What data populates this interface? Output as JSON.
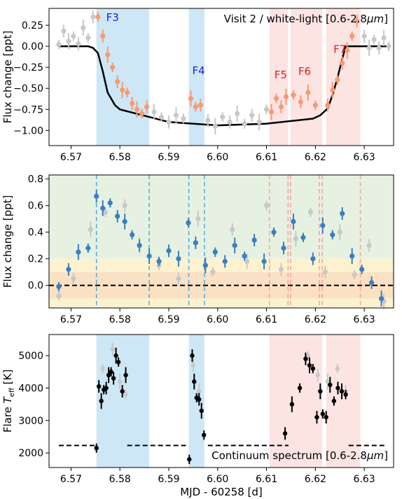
{
  "chart_data": [
    {
      "type": "scatter",
      "panel": "top",
      "annotation": "Visit 2 / white-light [0.6-2.8μm]",
      "annotation_parts": [
        "Visit 2 / white-light [0.6-2.8",
        "μm",
        "]"
      ],
      "xlabel": "",
      "ylabel": "Flux change [ppt]",
      "xlim": [
        6.5655,
        6.636
      ],
      "ylim": [
        -1.18,
        0.45
      ],
      "xticks": [
        "6.57",
        "6.58",
        "6.59",
        "6.60",
        "6.61",
        "6.62",
        "6.63"
      ],
      "yticks": [
        "0.25",
        "0.00",
        "−0.25",
        "−0.50",
        "−0.75",
        "−1.00"
      ],
      "ytick_values": [
        0.25,
        0.0,
        -0.25,
        -0.5,
        -0.75,
        -1.0
      ],
      "flare_regions": [
        {
          "name": "F3",
          "x0": 6.5752,
          "x1": 6.586,
          "color": "#5aafe0"
        },
        {
          "name": "F4",
          "x0": 6.5941,
          "x1": 6.5973,
          "color": "#5aafe0"
        },
        {
          "name": "F5",
          "x0": 6.6106,
          "x1": 6.6144,
          "color": "#f4a7a0"
        },
        {
          "name": "F6",
          "x0": 6.6149,
          "x1": 6.6214,
          "color": "#f4a7a0"
        },
        {
          "name": "F7",
          "x0": 6.6222,
          "x1": 6.6292,
          "color": "#f4a7a0"
        }
      ],
      "flare_labels": [
        {
          "text": "F3",
          "x": 6.5772,
          "y": 0.3,
          "color": "#1c1cd6"
        },
        {
          "text": "F4",
          "x": 6.5948,
          "y": -0.33,
          "color": "#1c1cd6"
        },
        {
          "text": "F5",
          "x": 6.6116,
          "y": -0.38,
          "color": "#e02020"
        },
        {
          "text": "F6",
          "x": 6.6165,
          "y": -0.34,
          "color": "#e02020"
        },
        {
          "text": "F7",
          "x": 6.6237,
          "y": -0.08,
          "color": "#e02020"
        }
      ],
      "model_transit": {
        "x": [
          6.5675,
          6.5735,
          6.5745,
          6.5755,
          6.5765,
          6.5775,
          6.579,
          6.58,
          6.59,
          6.6,
          6.61,
          6.6195,
          6.621,
          6.6225,
          6.6235,
          6.6245,
          6.6255,
          6.6262,
          6.635
        ],
        "y": [
          0,
          0,
          -0.02,
          -0.08,
          -0.3,
          -0.55,
          -0.7,
          -0.75,
          -0.9,
          -0.94,
          -0.92,
          -0.86,
          -0.82,
          -0.74,
          -0.58,
          -0.38,
          -0.15,
          0,
          0
        ]
      },
      "series": [
        {
          "name": "",
          "color": "#c8c8c8",
          "x": [
            6.5675,
            6.5685,
            6.5695,
            6.5705,
            6.5715,
            6.5725,
            6.5735,
            6.5745,
            6.587,
            6.5885,
            6.59,
            6.5915,
            6.593,
            6.598,
            6.5995,
            6.601,
            6.6025,
            6.604,
            6.6055,
            6.607,
            6.6085,
            6.61,
            6.63,
            6.631,
            6.632,
            6.633,
            6.634,
            6.635
          ],
          "y": [
            0.02,
            0.18,
            0.06,
            0.12,
            0.03,
            0.22,
            0.1,
            0.35,
            -0.78,
            -0.84,
            -0.9,
            -0.82,
            -0.86,
            -0.88,
            -0.95,
            -0.84,
            -0.9,
            -0.8,
            -0.92,
            -0.82,
            -0.9,
            -0.75,
            0.12,
            -0.02,
            0.08,
            -0.02,
            0.1,
            0.0
          ]
        },
        {
          "name": "",
          "color": "#f79a74",
          "x": [
            6.5755,
            6.5765,
            6.5775,
            6.5785,
            6.5795,
            6.5805,
            6.5815,
            6.5825,
            6.5835,
            6.5845,
            6.5855,
            6.5945,
            6.5955,
            6.5965,
            6.611,
            6.612,
            6.613,
            6.614,
            6.6155,
            6.617,
            6.6185,
            6.62,
            6.6225,
            6.6235,
            6.6245,
            6.6255,
            6.6265,
            6.6275,
            6.6285
          ],
          "y": [
            0.35,
            0.12,
            -0.1,
            -0.25,
            -0.42,
            -0.52,
            -0.55,
            -0.68,
            -0.75,
            -0.8,
            -0.72,
            -0.62,
            -0.72,
            -0.7,
            -0.78,
            -0.62,
            -0.72,
            -0.6,
            -0.58,
            -0.66,
            -0.55,
            -0.7,
            -0.7,
            -0.52,
            -0.4,
            -0.2,
            -0.05,
            0.12,
            0.3
          ]
        }
      ]
    },
    {
      "type": "scatter",
      "panel": "middle",
      "xlabel": "",
      "ylabel": "Flux change [ppt]",
      "xlim": [
        6.5655,
        6.636
      ],
      "ylim": [
        -0.17,
        0.83
      ],
      "xticks": [
        "6.57",
        "6.58",
        "6.59",
        "6.60",
        "6.61",
        "6.62",
        "6.63"
      ],
      "yticks": [
        "0.0",
        "0.2",
        "0.4",
        "0.6",
        "0.8"
      ],
      "ytick_values": [
        0.0,
        0.2,
        0.4,
        0.6,
        0.8
      ],
      "background_bands": [
        {
          "y0": 0.2,
          "y1": 0.83,
          "color": "#e6f1e2"
        },
        {
          "y0": 0.1,
          "y1": 0.2,
          "color": "#fdf2cf"
        },
        {
          "y0": -0.1,
          "y1": 0.1,
          "color": "#fbe1c3"
        },
        {
          "y0": -0.17,
          "y1": -0.1,
          "color": "#fdf2cf"
        }
      ],
      "flare_lines": [
        {
          "x": 6.5752,
          "color": "#5aafe0"
        },
        {
          "x": 6.586,
          "color": "#5aafe0"
        },
        {
          "x": 6.5941,
          "color": "#5aafe0"
        },
        {
          "x": 6.5973,
          "color": "#5aafe0"
        },
        {
          "x": 6.6106,
          "color": "#f4a7a0"
        },
        {
          "x": 6.6144,
          "color": "#f4a7a0"
        },
        {
          "x": 6.6149,
          "color": "#f4a7a0"
        },
        {
          "x": 6.6208,
          "color": "#f4a7a0"
        },
        {
          "x": 6.6214,
          "color": "#f4a7a0"
        },
        {
          "x": 6.6292,
          "color": "#f4a7a0"
        }
      ],
      "zero_line": 0.0,
      "series": [
        {
          "name": "",
          "color": "#c8c8c8",
          "x": [
            6.5675,
            6.5705,
            6.574,
            6.577,
            6.581,
            6.584,
            6.588,
            6.592,
            6.596,
            6.599,
            6.603,
            6.606,
            6.61,
            6.613,
            6.616,
            6.619,
            6.622,
            6.625,
            6.628,
            6.631,
            6.634
          ],
          "y": [
            -0.08,
            0.05,
            0.42,
            0.55,
            0.6,
            0.3,
            0.15,
            0.05,
            0.5,
            0.1,
            0.42,
            0.18,
            0.6,
            0.12,
            0.35,
            0.55,
            0.1,
            0.4,
            0.08,
            0.3,
            -0.12
          ]
        },
        {
          "name": "",
          "color": "#3a7fbe",
          "x": [
            6.5675,
            6.5695,
            6.5715,
            6.5735,
            6.5752,
            6.5765,
            6.578,
            6.5795,
            6.581,
            6.5825,
            6.584,
            6.586,
            6.588,
            6.59,
            6.592,
            6.594,
            6.5955,
            6.5975,
            6.5995,
            6.6015,
            6.6035,
            6.6055,
            6.6075,
            6.6095,
            6.6115,
            6.6135,
            6.6155,
            6.6175,
            6.6195,
            6.6215,
            6.6235,
            6.6255,
            6.6275,
            6.6295,
            6.6315,
            6.6335
          ],
          "y": [
            -0.01,
            0.12,
            0.25,
            0.28,
            0.67,
            0.58,
            0.62,
            0.52,
            0.48,
            0.38,
            0.3,
            0.22,
            0.18,
            0.26,
            0.2,
            0.47,
            0.32,
            0.15,
            0.25,
            0.18,
            0.3,
            0.22,
            0.34,
            0.18,
            0.4,
            0.28,
            0.48,
            0.36,
            0.2,
            0.45,
            0.38,
            0.54,
            0.22,
            0.12,
            0.02,
            -0.1
          ]
        }
      ]
    },
    {
      "type": "scatter",
      "panel": "bottom",
      "annotation": "Continuum spectrum [0.6-2.8μm]",
      "annotation_parts": [
        "Continuum spectrum [0.6-2.8",
        "μm",
        "]"
      ],
      "xlabel": "MJD - 60258 [d]",
      "ylabel_parts": [
        "Flare ",
        "T",
        "eff",
        " [K]"
      ],
      "xlim": [
        6.5655,
        6.636
      ],
      "ylim": [
        1550,
        5650
      ],
      "xticks": [
        "6.57",
        "6.58",
        "6.59",
        "6.60",
        "6.61",
        "6.62",
        "6.63"
      ],
      "yticks": [
        "2000",
        "3000",
        "4000",
        "5000"
      ],
      "ytick_values": [
        2000,
        3000,
        4000,
        5000
      ],
      "continuum_segments": [
        {
          "x0": 6.5675,
          "x1": 6.575,
          "y": 2230
        },
        {
          "x0": 6.5815,
          "x1": 6.5935,
          "y": 2230
        },
        {
          "x0": 6.598,
          "x1": 6.6145,
          "y": 2230
        },
        {
          "x0": 6.6268,
          "x1": 6.6345,
          "y": 2230
        }
      ],
      "flare_regions": [
        {
          "x0": 6.5752,
          "x1": 6.586,
          "color": "#5aafe0"
        },
        {
          "x0": 6.5941,
          "x1": 6.5973,
          "color": "#5aafe0"
        },
        {
          "x0": 6.6106,
          "x1": 6.6214,
          "color": "#f4a7a0"
        },
        {
          "x0": 6.6222,
          "x1": 6.6292,
          "color": "#f4a7a0"
        }
      ],
      "series": [
        {
          "name": "",
          "color": "#c8c8c8",
          "x": [
            6.5765,
            6.5785,
            6.58,
            6.5812,
            6.595,
            6.5962,
            6.6185,
            6.6205,
            6.6225,
            6.6245,
            6.6262
          ],
          "y": [
            4600,
            5200,
            4200,
            3800,
            4700,
            3900,
            5000,
            4400,
            4200,
            4600,
            3900
          ]
        },
        {
          "name": "",
          "color": "#000000",
          "x": [
            6.5752,
            6.5757,
            6.5762,
            6.5767,
            6.5772,
            6.5777,
            6.5782,
            6.5787,
            6.5792,
            6.5797,
            6.5805,
            6.5812,
            6.5942,
            6.5948,
            6.5952,
            6.5957,
            6.5962,
            6.5967,
            6.5972,
            6.6138,
            6.6152,
            6.6168,
            6.618,
            6.6188,
            6.6195,
            6.6203,
            6.621,
            6.6215,
            6.6222,
            6.623,
            6.6238,
            6.6246,
            6.6254,
            6.6262
          ],
          "y": [
            2150,
            4050,
            3600,
            3950,
            4000,
            4400,
            4500,
            4300,
            5000,
            4800,
            3900,
            4400,
            1800,
            5000,
            4200,
            3700,
            3650,
            3300,
            2550,
            2600,
            3500,
            4000,
            4900,
            4700,
            4600,
            3100,
            3900,
            3200,
            3100,
            4100,
            3600,
            4000,
            3900,
            3800
          ]
        }
      ]
    }
  ]
}
